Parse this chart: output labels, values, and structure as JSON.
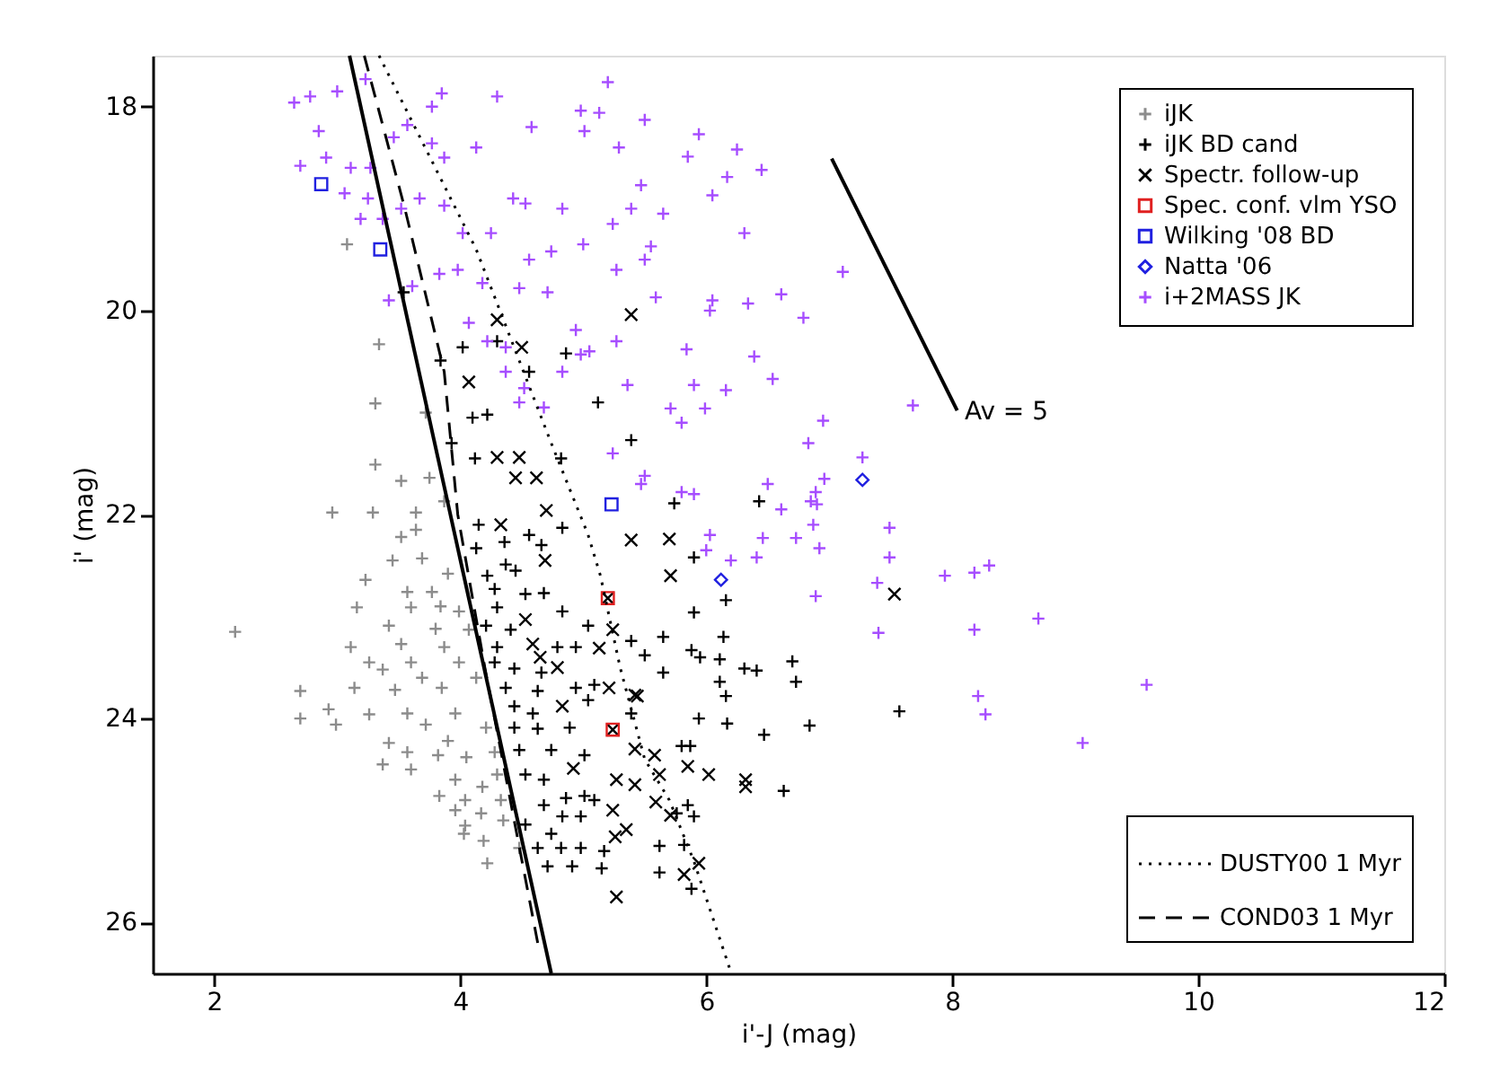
{
  "chart_data": {
    "type": "scatter",
    "xlabel": "i'-J (mag)",
    "ylabel": "i' (mag)",
    "xlim": [
      1.5,
      12
    ],
    "ylim": [
      26.5,
      17.5
    ],
    "xticks": [
      2,
      4,
      6,
      8,
      10,
      12
    ],
    "yticks": [
      18,
      20,
      22,
      24,
      26
    ],
    "grid": false,
    "legend": "right",
    "annotations": [
      {
        "text": "Av = 5",
        "x": 8.1,
        "y": 21.0
      }
    ],
    "series": [
      {
        "name": "iJK",
        "color": "#8c8c8c",
        "marker": "cross",
        "x": [
          3.08,
          3.34,
          3.31,
          3.72,
          3.31,
          3.52,
          3.75,
          2.96,
          3.29,
          3.64,
          3.87,
          3.64,
          3.52,
          3.45,
          3.69,
          3.9,
          3.23,
          3.57,
          3.77,
          3.6,
          3.84,
          3.99,
          3.16,
          2.17,
          3.42,
          3.8,
          4.07,
          3.11,
          3.52,
          3.87,
          3.26,
          3.6,
          3.99,
          3.37,
          3.69,
          4.13,
          3.14,
          3.47,
          3.85,
          2.7,
          2.93,
          3.26,
          3.57,
          3.96,
          2.7,
          2.99,
          3.72,
          4.21,
          3.42,
          3.9,
          4.28,
          3.57,
          3.82,
          4.05,
          3.37,
          3.6,
          4.3,
          3.96,
          4.18,
          3.83,
          4.04,
          4.33,
          3.96,
          4.17,
          4.04,
          4.35,
          4.03,
          4.19,
          4.48,
          4.22
        ],
        "values": [
          19.35,
          20.33,
          20.91,
          21.0,
          21.51,
          21.67,
          21.64,
          21.98,
          21.98,
          21.98,
          21.87,
          22.15,
          22.22,
          22.45,
          22.43,
          22.58,
          22.64,
          22.76,
          22.76,
          22.91,
          22.9,
          22.95,
          22.91,
          23.15,
          23.09,
          23.12,
          23.13,
          23.3,
          23.27,
          23.3,
          23.45,
          23.45,
          23.45,
          23.52,
          23.6,
          23.6,
          23.7,
          23.72,
          23.7,
          23.73,
          23.91,
          23.96,
          23.95,
          23.95,
          24.0,
          24.06,
          24.06,
          24.09,
          24.24,
          24.22,
          24.33,
          24.33,
          24.36,
          24.38,
          24.45,
          24.5,
          24.55,
          24.6,
          24.67,
          24.76,
          24.8,
          24.8,
          24.9,
          24.93,
          25.05,
          25.0,
          25.13,
          25.2,
          25.27,
          25.42
        ]
      },
      {
        "name": "iJK BD cand",
        "color": "#000000",
        "marker": "cross",
        "x": [
          3.84,
          4.02,
          4.3,
          4.56,
          4.86,
          4.1,
          4.22,
          3.93,
          4.12,
          4.82,
          5.12,
          5.39,
          4.83,
          4.15,
          3.54,
          4.13,
          4.36,
          4.56,
          4.66,
          4.22,
          4.37,
          4.45,
          4.28,
          4.53,
          4.68,
          4.3,
          4.83,
          4.21,
          4.41,
          5.04,
          4.3,
          4.79,
          4.94,
          5.39,
          4.28,
          4.44,
          4.66,
          4.37,
          4.63,
          4.94,
          5.09,
          4.44,
          4.59,
          5.04,
          5.39,
          4.44,
          4.63,
          4.89,
          4.48,
          4.74,
          5.01,
          4.53,
          4.68,
          4.86,
          5.01,
          5.09,
          4.68,
          4.83,
          4.98,
          4.53,
          4.74,
          4.63,
          4.82,
          4.98,
          5.17,
          4.71,
          4.91,
          5.15,
          5.9,
          6.16,
          5.9,
          6.14,
          5.65,
          5.88,
          5.95,
          6.11,
          5.5,
          6.31,
          6.41,
          6.7,
          6.73,
          6.11,
          6.16,
          5.65,
          5.94,
          6.17,
          6.47,
          6.84,
          7.57,
          5.8,
          5.87,
          6.63,
          5.85,
          5.9,
          5.76,
          5.62,
          5.82,
          5.62,
          5.88,
          6.43,
          5.74
        ],
        "values": [
          20.49,
          20.36,
          20.3,
          20.6,
          20.42,
          21.05,
          21.02,
          21.3,
          21.45,
          21.45,
          20.9,
          21.27,
          22.13,
          22.1,
          19.82,
          22.33,
          22.27,
          22.2,
          22.3,
          22.6,
          22.49,
          22.55,
          22.73,
          22.78,
          22.77,
          22.91,
          22.95,
          23.09,
          23.13,
          23.09,
          23.3,
          23.3,
          23.3,
          23.24,
          23.45,
          23.51,
          23.55,
          23.7,
          23.73,
          23.7,
          23.67,
          23.88,
          23.95,
          23.82,
          23.95,
          24.09,
          24.1,
          24.09,
          24.31,
          24.31,
          24.36,
          24.55,
          24.6,
          24.78,
          24.76,
          24.8,
          24.85,
          24.96,
          24.96,
          25.04,
          25.13,
          25.27,
          25.27,
          25.27,
          25.3,
          25.45,
          25.45,
          25.47,
          22.42,
          22.84,
          22.96,
          23.2,
          23.2,
          23.33,
          23.4,
          23.42,
          23.38,
          23.51,
          23.53,
          23.44,
          23.64,
          23.64,
          23.78,
          23.55,
          24.0,
          24.05,
          24.16,
          24.07,
          23.93,
          24.27,
          24.27,
          24.71,
          24.85,
          24.96,
          24.93,
          25.25,
          25.24,
          25.51,
          25.67,
          21.87,
          21.89
        ]
      },
      {
        "name": "Spectr. follow-up",
        "color": "#000000",
        "marker": "x",
        "x": [
          4.3,
          4.5,
          4.07,
          5.39,
          4.3,
          4.48,
          4.45,
          4.62,
          4.7,
          4.33,
          5.39,
          4.69,
          5.2,
          4.53,
          5.24,
          4.59,
          5.13,
          4.79,
          4.65,
          5.21,
          5.42,
          4.83,
          5.24,
          5.42,
          4.92,
          5.27,
          5.42,
          5.24,
          5.35,
          5.26,
          5.27,
          5.7,
          5.71,
          7.53,
          5.44,
          5.58,
          5.62,
          5.85,
          6.02,
          6.32,
          6.32,
          5.59,
          5.71,
          5.94,
          5.82
        ],
        "values": [
          20.09,
          20.36,
          20.7,
          20.04,
          21.44,
          21.44,
          21.64,
          21.64,
          21.96,
          22.1,
          22.25,
          22.45,
          22.82,
          23.03,
          23.13,
          23.27,
          23.31,
          23.5,
          23.4,
          23.7,
          23.77,
          23.88,
          24.11,
          24.3,
          24.49,
          24.6,
          24.65,
          24.9,
          25.09,
          25.16,
          25.75,
          22.24,
          22.6,
          22.78,
          23.78,
          24.36,
          24.55,
          24.47,
          24.55,
          24.6,
          24.67,
          24.82,
          24.95,
          25.42,
          25.53
        ]
      },
      {
        "name": "Spec. conf. vlm YSO",
        "color": "#e02020",
        "marker": "square",
        "x": [
          5.2,
          5.24
        ],
        "values": [
          22.82,
          24.11
        ]
      },
      {
        "name": "Wilking '08 BD",
        "color": "#2020e0",
        "marker": "square",
        "x": [
          2.87,
          3.35,
          5.23
        ],
        "values": [
          18.76,
          19.4,
          21.9
        ]
      },
      {
        "name": "Natta '06",
        "color": "#2020e0",
        "marker": "diamond",
        "x": [
          7.27,
          6.12
        ],
        "values": [
          21.66,
          22.64
        ]
      },
      {
        "name": "i+2MASS JK",
        "color": "#a64dff",
        "marker": "cross",
        "x": [
          2.65,
          2.78,
          3.0,
          3.23,
          2.85,
          2.7,
          2.91,
          3.11,
          3.27,
          3.46,
          3.57,
          3.77,
          3.85,
          3.77,
          3.87,
          4.13,
          4.3,
          4.58,
          4.98,
          5.13,
          5.2,
          5.01,
          5.29,
          5.47,
          3.06,
          3.25,
          3.19,
          3.37,
          3.52,
          3.67,
          3.87,
          4.02,
          4.25,
          4.43,
          4.53,
          4.83,
          5.24,
          3.42,
          3.61,
          3.83,
          3.98,
          4.18,
          4.56,
          4.74,
          5.0,
          5.27,
          4.48,
          4.71,
          4.07,
          4.22,
          4.37,
          4.37,
          4.52,
          4.83,
          4.98,
          5.05,
          5.27,
          4.94,
          5.36,
          5.24,
          5.47,
          4.68,
          4.48,
          5.5,
          5.94,
          6.25,
          5.85,
          6.45,
          6.17,
          6.05,
          5.65,
          5.39,
          6.31,
          5.55,
          5.5,
          7.11,
          6.61,
          6.05,
          6.34,
          6.03,
          6.79,
          5.59,
          5.84,
          6.39,
          6.54,
          5.9,
          6.16,
          5.99,
          5.71,
          5.8,
          6.95,
          7.68,
          6.83,
          7.27,
          6.96,
          6.5,
          6.89,
          5.5,
          5.8,
          5.9,
          6.61,
          6.9,
          6.87,
          7.49,
          6.03,
          6.46,
          6.73,
          6.85,
          6.92,
          7.49,
          6.41,
          6.2,
          6.0,
          6.89,
          7.39,
          7.94,
          8.18,
          8.3,
          7.4,
          8.18,
          8.7,
          8.21,
          8.27,
          9.58,
          9.06
        ],
        "values": [
          17.96,
          17.9,
          17.85,
          17.73,
          18.24,
          18.58,
          18.5,
          18.6,
          18.6,
          18.3,
          18.18,
          18.0,
          17.87,
          18.36,
          18.5,
          18.4,
          17.9,
          18.2,
          18.04,
          18.06,
          17.76,
          18.24,
          18.4,
          18.77,
          18.85,
          18.9,
          19.1,
          19.1,
          19.0,
          18.9,
          18.97,
          19.24,
          19.24,
          18.9,
          18.95,
          19.0,
          19.15,
          19.9,
          19.76,
          19.64,
          19.6,
          19.73,
          19.5,
          19.42,
          19.35,
          19.6,
          19.78,
          19.82,
          20.12,
          20.3,
          20.36,
          20.6,
          20.76,
          20.6,
          20.43,
          20.4,
          20.3,
          20.19,
          20.73,
          21.4,
          21.7,
          20.95,
          20.9,
          18.13,
          18.27,
          18.42,
          18.49,
          18.62,
          18.69,
          18.87,
          19.05,
          19.0,
          19.24,
          19.37,
          19.5,
          19.62,
          19.84,
          19.9,
          19.93,
          20.0,
          20.07,
          19.87,
          20.38,
          20.45,
          20.67,
          20.73,
          20.78,
          20.96,
          20.96,
          21.1,
          21.08,
          20.93,
          21.3,
          21.44,
          21.65,
          21.7,
          21.78,
          21.62,
          21.78,
          21.8,
          21.95,
          21.9,
          22.1,
          22.13,
          22.2,
          22.23,
          22.23,
          21.87,
          22.33,
          22.42,
          22.42,
          22.45,
          22.35,
          22.8,
          22.67,
          22.6,
          22.57,
          22.5,
          23.16,
          23.13,
          23.02,
          23.78,
          23.96,
          23.67,
          24.24
        ]
      },
      {
        "type": "line",
        "line_style": "solid",
        "color": "#000000",
        "x": [
          3.1,
          4.74
        ],
        "values": [
          17.5,
          26.5
        ]
      },
      {
        "type": "line",
        "name": "DUSTY00 1 Myr",
        "line_style": "dotted",
        "color": "#000000",
        "x": [
          3.34,
          4.13,
          4.74,
          5.04,
          5.14,
          5.3,
          5.5,
          5.7,
          5.9,
          6.19
        ],
        "values": [
          17.5,
          19.4,
          21.3,
          22.2,
          22.6,
          23.5,
          24.4,
          24.8,
          25.4,
          26.45
        ]
      },
      {
        "type": "line",
        "name": "COND03 1 Myr",
        "line_style": "dashed",
        "color": "#000000",
        "x": [
          3.22,
          3.55,
          3.87,
          3.98,
          4.2,
          4.63
        ],
        "values": [
          17.5,
          19.0,
          20.6,
          22.0,
          23.5,
          26.2
        ]
      },
      {
        "type": "line",
        "line_style": "solid",
        "color": "#000000",
        "x": [
          7.02,
          8.04
        ],
        "values": [
          18.51,
          20.98
        ]
      }
    ]
  }
}
